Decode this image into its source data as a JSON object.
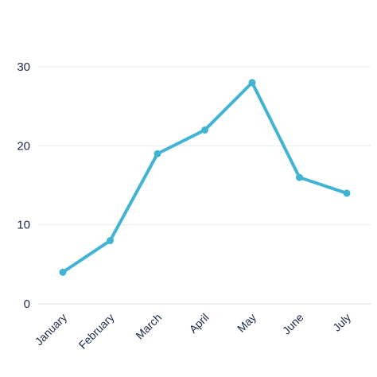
{
  "chart_data": {
    "type": "line",
    "categories": [
      "January",
      "February",
      "March",
      "April",
      "May",
      "June",
      "July"
    ],
    "series": [
      {
        "values": [
          4,
          8,
          19,
          22,
          28,
          16,
          14
        ],
        "color": "#41b3d3"
      }
    ],
    "ylim": [
      0,
      30
    ],
    "yticks": [
      0,
      10,
      20,
      30
    ],
    "grid": true,
    "legend": "none",
    "title": "",
    "xlabel": "",
    "ylabel": ""
  }
}
